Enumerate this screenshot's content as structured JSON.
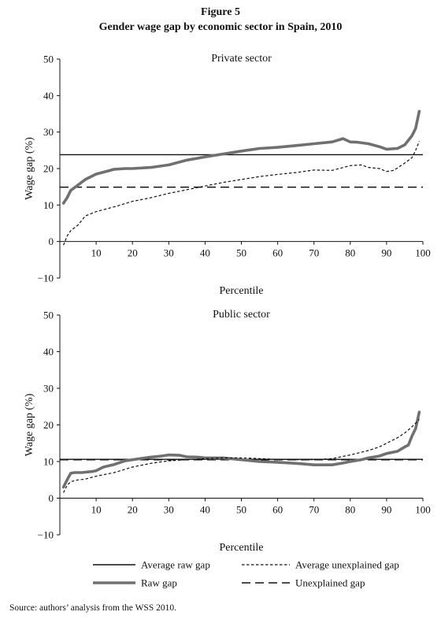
{
  "figure": {
    "label": "Figure 5",
    "title": "Gender wage gap by economic sector in Spain, 2010",
    "source": "Source: authors’ analysis from the WSS 2010."
  },
  "legend": [
    {
      "key": "avg_raw",
      "label": "Average raw gap",
      "style": "solid-thin"
    },
    {
      "key": "avg_unexp",
      "label": "Average unexplained gap",
      "style": "dotted"
    },
    {
      "key": "raw",
      "label": "Raw gap",
      "style": "thick-gray"
    },
    {
      "key": "unexp",
      "label": "Unexplained gap",
      "style": "long-dash"
    }
  ],
  "colors": {
    "raw_gap": "#707070",
    "lines": "#111111"
  },
  "chart_data": [
    {
      "type": "line",
      "title": "Private sector",
      "xlabel": "Percentile",
      "ylabel": "Wage gap (%)",
      "xlim": [
        0,
        100
      ],
      "ylim": [
        -10,
        50
      ],
      "xticks": [
        10,
        20,
        30,
        40,
        50,
        60,
        70,
        80,
        90,
        100
      ],
      "yticks": [
        -10,
        0,
        10,
        20,
        30,
        40,
        50
      ],
      "grid": false,
      "average_raw_gap": 23.8,
      "average_unexplained_gap": 14.9,
      "series": [
        {
          "name": "Raw gap",
          "x": [
            1,
            2,
            3,
            5,
            7,
            10,
            12,
            15,
            18,
            20,
            25,
            30,
            35,
            40,
            45,
            50,
            55,
            60,
            65,
            70,
            75,
            78,
            80,
            82,
            85,
            88,
            90,
            93,
            95,
            97,
            98,
            99
          ],
          "y": [
            10.5,
            12,
            14,
            15.5,
            17,
            18.5,
            19,
            19.8,
            20,
            20,
            20.3,
            21,
            22.3,
            23.2,
            24,
            24.8,
            25.5,
            25.8,
            26.3,
            26.8,
            27.3,
            28.2,
            27.3,
            27.2,
            26.8,
            26,
            25.3,
            25.5,
            26.5,
            29,
            31,
            35.7
          ]
        },
        {
          "name": "Unexplained gap",
          "x": [
            1,
            2,
            3,
            5,
            7,
            10,
            15,
            20,
            25,
            30,
            35,
            40,
            45,
            50,
            55,
            60,
            65,
            70,
            75,
            80,
            83,
            85,
            88,
            90,
            92,
            95,
            97,
            98,
            99
          ],
          "y": [
            -1,
            1.5,
            3,
            4.5,
            7,
            8.2,
            9.5,
            11,
            12,
            13.2,
            14.2,
            15.2,
            16.2,
            17,
            17.8,
            18.4,
            18.9,
            19.6,
            19.5,
            20.8,
            21,
            20.3,
            20,
            19.2,
            19.5,
            21.5,
            23,
            25,
            27.5
          ]
        }
      ]
    },
    {
      "type": "line",
      "title": "Public sector",
      "xlabel": "Percentile",
      "ylabel": "Wage gap (%)",
      "xlim": [
        0,
        100
      ],
      "ylim": [
        -10,
        50
      ],
      "xticks": [
        10,
        20,
        30,
        40,
        50,
        60,
        70,
        80,
        90,
        100
      ],
      "yticks": [
        -10,
        0,
        10,
        20,
        30,
        40,
        50
      ],
      "grid": false,
      "average_raw_gap": 10.6,
      "average_unexplained_gap": 10.5,
      "series": [
        {
          "name": "Raw gap",
          "x": [
            1,
            2,
            3,
            4,
            6,
            9,
            10,
            12,
            15,
            18,
            20,
            25,
            28,
            30,
            33,
            35,
            38,
            40,
            45,
            50,
            55,
            60,
            65,
            70,
            75,
            78,
            80,
            83,
            85,
            88,
            90,
            93,
            95,
            96,
            97,
            98,
            99
          ],
          "y": [
            3,
            5,
            6.8,
            7,
            7,
            7.3,
            7.5,
            8.5,
            9.2,
            10.2,
            10.5,
            11.2,
            11.5,
            11.8,
            11.7,
            11.3,
            11.2,
            11,
            11,
            10.5,
            10,
            9.8,
            9.5,
            9.1,
            9.1,
            9.6,
            10,
            10.5,
            11,
            11.5,
            12.2,
            12.8,
            14,
            14.5,
            17,
            19,
            23.5
          ]
        },
        {
          "name": "Unexplained gap",
          "x": [
            1,
            2,
            3,
            5,
            7,
            10,
            15,
            20,
            25,
            30,
            35,
            40,
            45,
            50,
            55,
            60,
            65,
            70,
            75,
            80,
            85,
            88,
            90,
            93,
            95,
            97,
            99
          ],
          "y": [
            1.5,
            3.5,
            4.5,
            5,
            5.2,
            6,
            7,
            8.5,
            9.5,
            10.2,
            10.5,
            10.8,
            11,
            11,
            10.8,
            10.6,
            10.5,
            10.5,
            10.8,
            11.8,
            13,
            14,
            15,
            16.5,
            17.8,
            19.5,
            21.5
          ]
        }
      ]
    }
  ]
}
